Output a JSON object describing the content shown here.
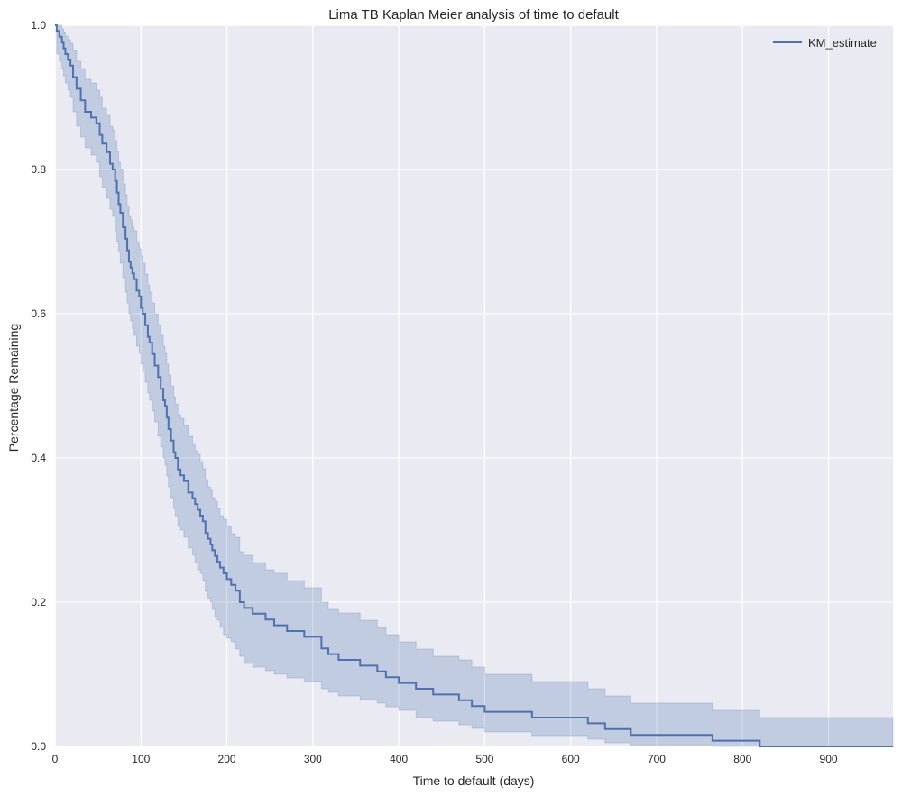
{
  "chart_data": {
    "type": "line",
    "step": true,
    "title": "Lima TB Kaplan Meier analysis of time to default",
    "xlabel": "Time to default (days)",
    "ylabel": "Percentage Remaining",
    "xlim": [
      0,
      975
    ],
    "ylim": [
      0,
      1.0
    ],
    "xticks": [
      0,
      100,
      200,
      300,
      400,
      500,
      600,
      700,
      800,
      900
    ],
    "xtick_labels": [
      "0",
      "100",
      "200",
      "300",
      "400",
      "500",
      "600",
      "700",
      "800",
      "900"
    ],
    "yticks": [
      0,
      0.2,
      0.4,
      0.6,
      0.8,
      1.0
    ],
    "ytick_labels": [
      "0.0",
      "0.2",
      "0.4",
      "0.6",
      "0.8",
      "1.0"
    ],
    "grid": true,
    "legend_position": "top-right",
    "colors": {
      "background": "#eaeaf2",
      "grid": "#ffffff",
      "line": "#4c72b0",
      "band": "#4c72b0"
    },
    "series": [
      {
        "name": "KM_estimate",
        "x": [
          0,
          2,
          5,
          8,
          10,
          12,
          15,
          18,
          21,
          25,
          30,
          35,
          42,
          48,
          52,
          55,
          60,
          64,
          67,
          70,
          72,
          74,
          76,
          79,
          82,
          84,
          86,
          88,
          90,
          92,
          95,
          98,
          100,
          102,
          105,
          108,
          110,
          113,
          116,
          120,
          123,
          126,
          128,
          130,
          132,
          135,
          138,
          140,
          143,
          146,
          150,
          155,
          160,
          163,
          166,
          169,
          172,
          175,
          178,
          181,
          183,
          186,
          189,
          192,
          196,
          200,
          205,
          210,
          215,
          220,
          230,
          245,
          255,
          270,
          290,
          310,
          318,
          330,
          355,
          375,
          385,
          400,
          420,
          440,
          470,
          485,
          500,
          555,
          620,
          640,
          670,
          765,
          820,
          975
        ],
        "y": [
          1.0,
          0.992,
          0.984,
          0.976,
          0.968,
          0.96,
          0.952,
          0.944,
          0.928,
          0.912,
          0.896,
          0.88,
          0.872,
          0.864,
          0.848,
          0.836,
          0.824,
          0.808,
          0.8,
          0.784,
          0.768,
          0.752,
          0.74,
          0.72,
          0.704,
          0.688,
          0.672,
          0.664,
          0.656,
          0.648,
          0.632,
          0.624,
          0.608,
          0.6,
          0.584,
          0.568,
          0.56,
          0.544,
          0.528,
          0.512,
          0.496,
          0.48,
          0.472,
          0.456,
          0.44,
          0.424,
          0.408,
          0.4,
          0.384,
          0.376,
          0.368,
          0.352,
          0.344,
          0.336,
          0.328,
          0.32,
          0.312,
          0.296,
          0.288,
          0.28,
          0.272,
          0.264,
          0.256,
          0.248,
          0.24,
          0.232,
          0.224,
          0.216,
          0.2,
          0.192,
          0.184,
          0.176,
          0.168,
          0.16,
          0.152,
          0.136,
          0.128,
          0.12,
          0.112,
          0.104,
          0.096,
          0.088,
          0.08,
          0.072,
          0.064,
          0.056,
          0.048,
          0.04,
          0.032,
          0.024,
          0.016,
          0.008,
          0.0,
          0.0
        ],
        "ci_lower": [
          1.0,
          0.96,
          0.95,
          0.94,
          0.93,
          0.92,
          0.91,
          0.9,
          0.88,
          0.86,
          0.845,
          0.83,
          0.82,
          0.81,
          0.79,
          0.775,
          0.76,
          0.745,
          0.735,
          0.715,
          0.7,
          0.685,
          0.67,
          0.65,
          0.63,
          0.615,
          0.6,
          0.59,
          0.58,
          0.57,
          0.555,
          0.545,
          0.53,
          0.52,
          0.505,
          0.49,
          0.48,
          0.465,
          0.45,
          0.43,
          0.415,
          0.4,
          0.39,
          0.375,
          0.36,
          0.345,
          0.33,
          0.32,
          0.305,
          0.3,
          0.29,
          0.275,
          0.265,
          0.255,
          0.245,
          0.24,
          0.23,
          0.215,
          0.205,
          0.2,
          0.19,
          0.18,
          0.175,
          0.165,
          0.155,
          0.15,
          0.145,
          0.135,
          0.125,
          0.115,
          0.11,
          0.105,
          0.1,
          0.095,
          0.09,
          0.08,
          0.075,
          0.07,
          0.065,
          0.06,
          0.055,
          0.05,
          0.04,
          0.035,
          0.03,
          0.025,
          0.02,
          0.015,
          0.01,
          0.005,
          0.002,
          0.0,
          0.0,
          0.0
        ],
        "ci_upper": [
          1.0,
          1.0,
          1.0,
          0.995,
          0.99,
          0.985,
          0.98,
          0.975,
          0.965,
          0.95,
          0.94,
          0.925,
          0.92,
          0.91,
          0.9,
          0.885,
          0.875,
          0.86,
          0.855,
          0.84,
          0.825,
          0.81,
          0.8,
          0.78,
          0.765,
          0.75,
          0.735,
          0.73,
          0.72,
          0.715,
          0.7,
          0.69,
          0.68,
          0.67,
          0.655,
          0.64,
          0.63,
          0.615,
          0.6,
          0.585,
          0.57,
          0.555,
          0.545,
          0.53,
          0.515,
          0.5,
          0.485,
          0.475,
          0.46,
          0.455,
          0.445,
          0.43,
          0.42,
          0.41,
          0.405,
          0.395,
          0.385,
          0.37,
          0.36,
          0.355,
          0.345,
          0.34,
          0.33,
          0.32,
          0.315,
          0.305,
          0.295,
          0.29,
          0.27,
          0.265,
          0.255,
          0.245,
          0.24,
          0.23,
          0.22,
          0.2,
          0.19,
          0.185,
          0.175,
          0.165,
          0.155,
          0.145,
          0.135,
          0.125,
          0.12,
          0.11,
          0.1,
          0.09,
          0.08,
          0.07,
          0.06,
          0.05,
          0.04,
          0.04
        ]
      }
    ]
  }
}
